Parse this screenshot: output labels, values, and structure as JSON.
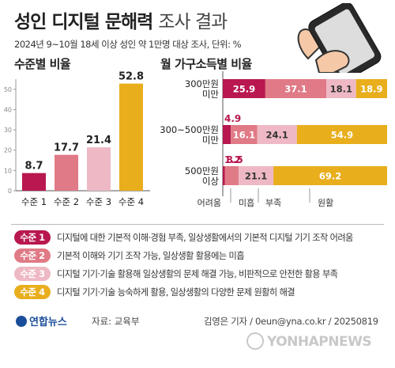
{
  "header": {
    "title_main": "성인 디지털 문해력",
    "title_light": "조사 결과",
    "subtitle": "2024년 9~10월 18세 이상 성인 약 1만명 대상 조사, 단위: %"
  },
  "colors": {
    "level1": "#b8174f",
    "level2": "#e07a86",
    "level3": "#eeb9c4",
    "level4": "#e8ae1c",
    "axis": "#999999"
  },
  "chart_data": [
    {
      "type": "bar",
      "title": "수준별 비율",
      "categories": [
        "수준 1",
        "수준 2",
        "수준 3",
        "수준 4"
      ],
      "values": [
        8.7,
        17.7,
        21.4,
        52.8
      ],
      "ytick_labels": [
        "0",
        "10",
        "20",
        "30",
        "40",
        "50"
      ],
      "ylim": [
        0,
        55
      ],
      "grid": false
    },
    {
      "type": "bar",
      "orientation": "horizontal",
      "stacked": true,
      "title": "월 가구소득별 비율",
      "categories": [
        "300만원 미만",
        "300~500만원 미만",
        "500만원 이상"
      ],
      "category_lines": [
        [
          "300만원",
          "미만"
        ],
        [
          "300~500만원",
          "미만"
        ],
        [
          "500만원",
          "이상"
        ]
      ],
      "series": [
        {
          "name": "수준 1",
          "values": [
            25.9,
            4.9,
            1.2
          ]
        },
        {
          "name": "수준 2",
          "values": [
            37.1,
            16.1,
            8.5
          ]
        },
        {
          "name": "수준 3",
          "values": [
            18.1,
            24.1,
            21.1
          ]
        },
        {
          "name": "수준 4",
          "values": [
            18.9,
            54.9,
            69.2
          ]
        }
      ],
      "xlim": [
        0,
        100
      ],
      "axis_annotations": [
        "어려움",
        "미흡",
        "부족",
        "원활"
      ]
    }
  ],
  "legend": [
    {
      "badge": "수준 1",
      "text": "디지털에 대한 기본적 이해·경험 부족, 일상생활에서의 기본적 디지털 기기 조작 어려움"
    },
    {
      "badge": "수준 2",
      "text": "기본적 이해와 기기 조작 가능, 일상생활 활용에는 미흡"
    },
    {
      "badge": "수준 3",
      "text": "디지털 기기·기술 활용해 일상생활의 문제 해결 가능, 비판적으로 안전한 활용 부족"
    },
    {
      "badge": "수준 4",
      "text": "디지털 기기·기술 능숙하게 활용, 일상생활의 다양한 문제 원활히 해결"
    }
  ],
  "footer": {
    "logo": "연합뉴스",
    "source": "자료: 교육부",
    "credit": "김영은 기자 / 0eun@yna.co.kr / 20250819",
    "watermark": "YONHAPNEWS"
  }
}
